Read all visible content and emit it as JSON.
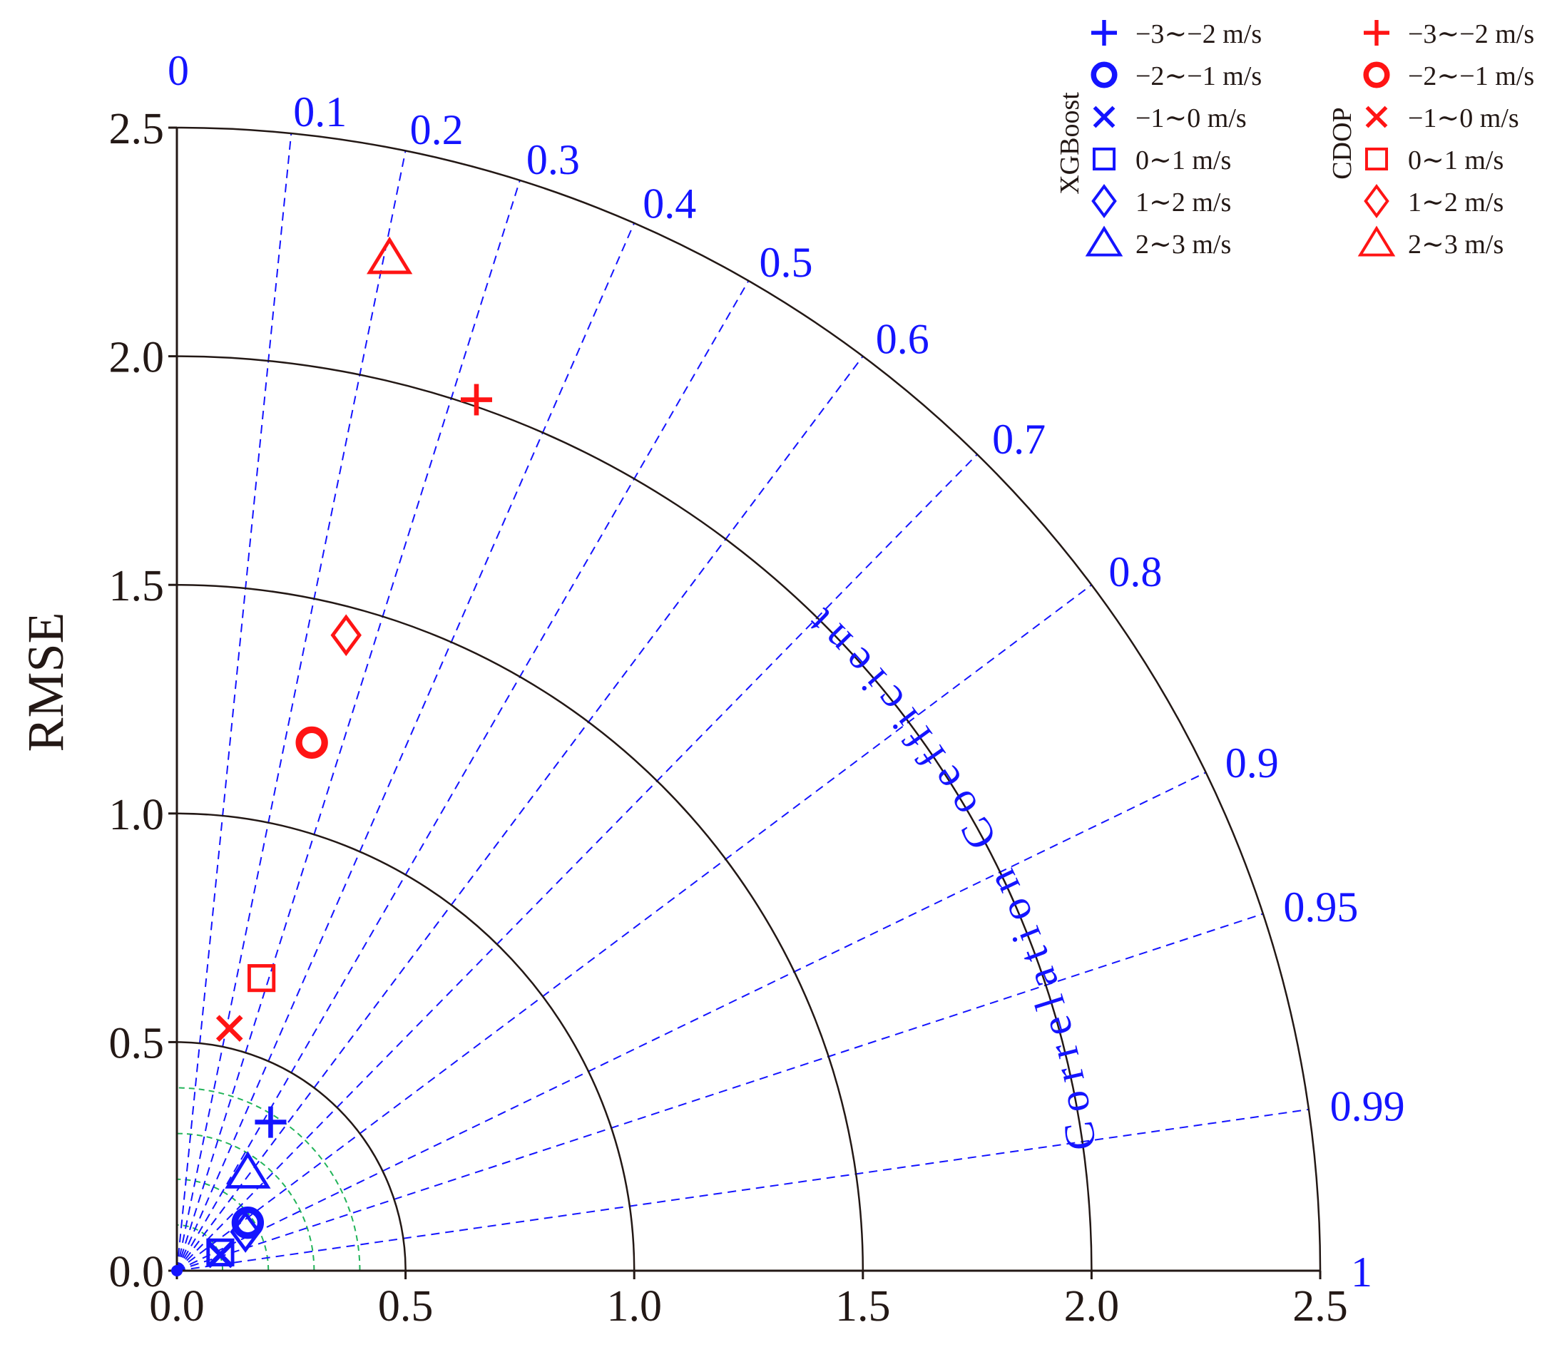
{
  "chart_data": {
    "type": "taylor",
    "ylabel": "RMSE",
    "axis_range": [
      0,
      2.5
    ],
    "x_ticks": [
      "0.0",
      "0.5",
      "1.0",
      "1.5",
      "2.0",
      "2.5"
    ],
    "y_ticks": [
      "0.0",
      "0.5",
      "1.0",
      "1.5",
      "2.0",
      "2.5"
    ],
    "correlation_label": "Correlation Coefficient",
    "correlation_ticks": [
      {
        "value": 0,
        "label": "0"
      },
      {
        "value": 0.1,
        "label": "0.1"
      },
      {
        "value": 0.2,
        "label": "0.2"
      },
      {
        "value": 0.3,
        "label": "0.3"
      },
      {
        "value": 0.4,
        "label": "0.4"
      },
      {
        "value": 0.5,
        "label": "0.5"
      },
      {
        "value": 0.6,
        "label": "0.6"
      },
      {
        "value": 0.7,
        "label": "0.7"
      },
      {
        "value": 0.8,
        "label": "0.8"
      },
      {
        "value": 0.9,
        "label": "0.9"
      },
      {
        "value": 0.95,
        "label": "0.95"
      },
      {
        "value": 0.99,
        "label": "0.99"
      },
      {
        "value": 1,
        "label": "1"
      }
    ],
    "arc_radii": [
      0.5,
      1.0,
      1.5,
      2.0,
      2.5
    ],
    "reference_arc_radii": [
      0.1,
      0.2,
      0.3,
      0.4
    ],
    "groups": [
      {
        "name": "XGBoost",
        "color": "#1414ff",
        "points": [
          {
            "label": "−3∼−2 m/s",
            "marker": "plus",
            "x": 0.205,
            "y": 0.325
          },
          {
            "label": "−2∼−1 m/s",
            "marker": "circle",
            "x": 0.155,
            "y": 0.105
          },
          {
            "label": "−1∼0 m/s",
            "marker": "x",
            "x": 0.095,
            "y": 0.035
          },
          {
            "label": "0∼1 m/s",
            "marker": "square",
            "x": 0.095,
            "y": 0.04
          },
          {
            "label": "1∼2 m/s",
            "marker": "diamond",
            "x": 0.15,
            "y": 0.085
          },
          {
            "label": "2∼3 m/s",
            "marker": "triangle",
            "x": 0.155,
            "y": 0.215
          }
        ]
      },
      {
        "name": "CDOP",
        "color": "#ff1414",
        "points": [
          {
            "label": "−3∼−2 m/s",
            "marker": "plus",
            "x": 0.655,
            "y": 1.905
          },
          {
            "label": "−2∼−1 m/s",
            "marker": "circle",
            "x": 0.295,
            "y": 1.155
          },
          {
            "label": "−1∼0 m/s",
            "marker": "x",
            "x": 0.115,
            "y": 0.53
          },
          {
            "label": "0∼1 m/s",
            "marker": "square",
            "x": 0.185,
            "y": 0.64
          },
          {
            "label": "1∼2 m/s",
            "marker": "diamond",
            "x": 0.37,
            "y": 1.39
          },
          {
            "label": "2∼3 m/s",
            "marker": "triangle",
            "x": 0.465,
            "y": 2.215
          }
        ]
      }
    ],
    "legend_position": "top-right",
    "colors": {
      "axis": "#231815",
      "correlation": "#1414ff",
      "reference": "#22b45a",
      "xgboost": "#1414ff",
      "cdop": "#ff1414"
    }
  }
}
